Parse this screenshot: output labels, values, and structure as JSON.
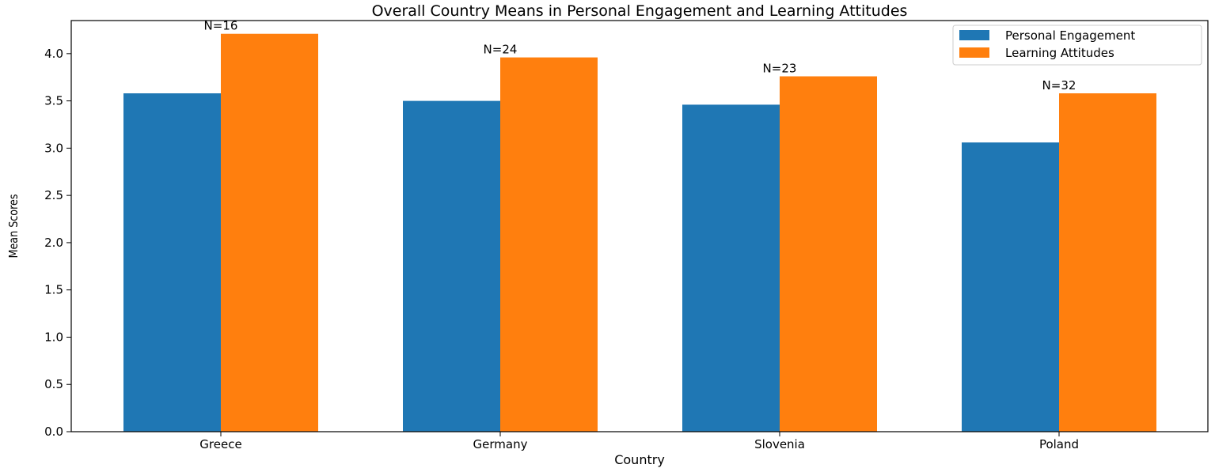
{
  "chart_data": {
    "type": "bar",
    "title": "Overall Country Means in Personal Engagement and Learning Attitudes",
    "xlabel": "Country",
    "ylabel": "Mean Scores",
    "categories": [
      "Greece",
      "Germany",
      "Slovenia",
      "Poland"
    ],
    "series": [
      {
        "name": "Personal Engagement",
        "color": "#1f77b4",
        "values": [
          3.58,
          3.5,
          3.46,
          3.06
        ]
      },
      {
        "name": "Learning Attitudes",
        "color": "#ff7f0e",
        "values": [
          4.21,
          3.96,
          3.76,
          3.58
        ]
      }
    ],
    "annotations": [
      "N=16",
      "N=24",
      "N=23",
      "N=32"
    ],
    "ylim": [
      0,
      4.35
    ],
    "yticks": [
      "0.0",
      "0.5",
      "1.0",
      "1.5",
      "2.0",
      "2.5",
      "3.0",
      "3.5",
      "4.0"
    ],
    "legend": "top-right",
    "grid": false
  }
}
